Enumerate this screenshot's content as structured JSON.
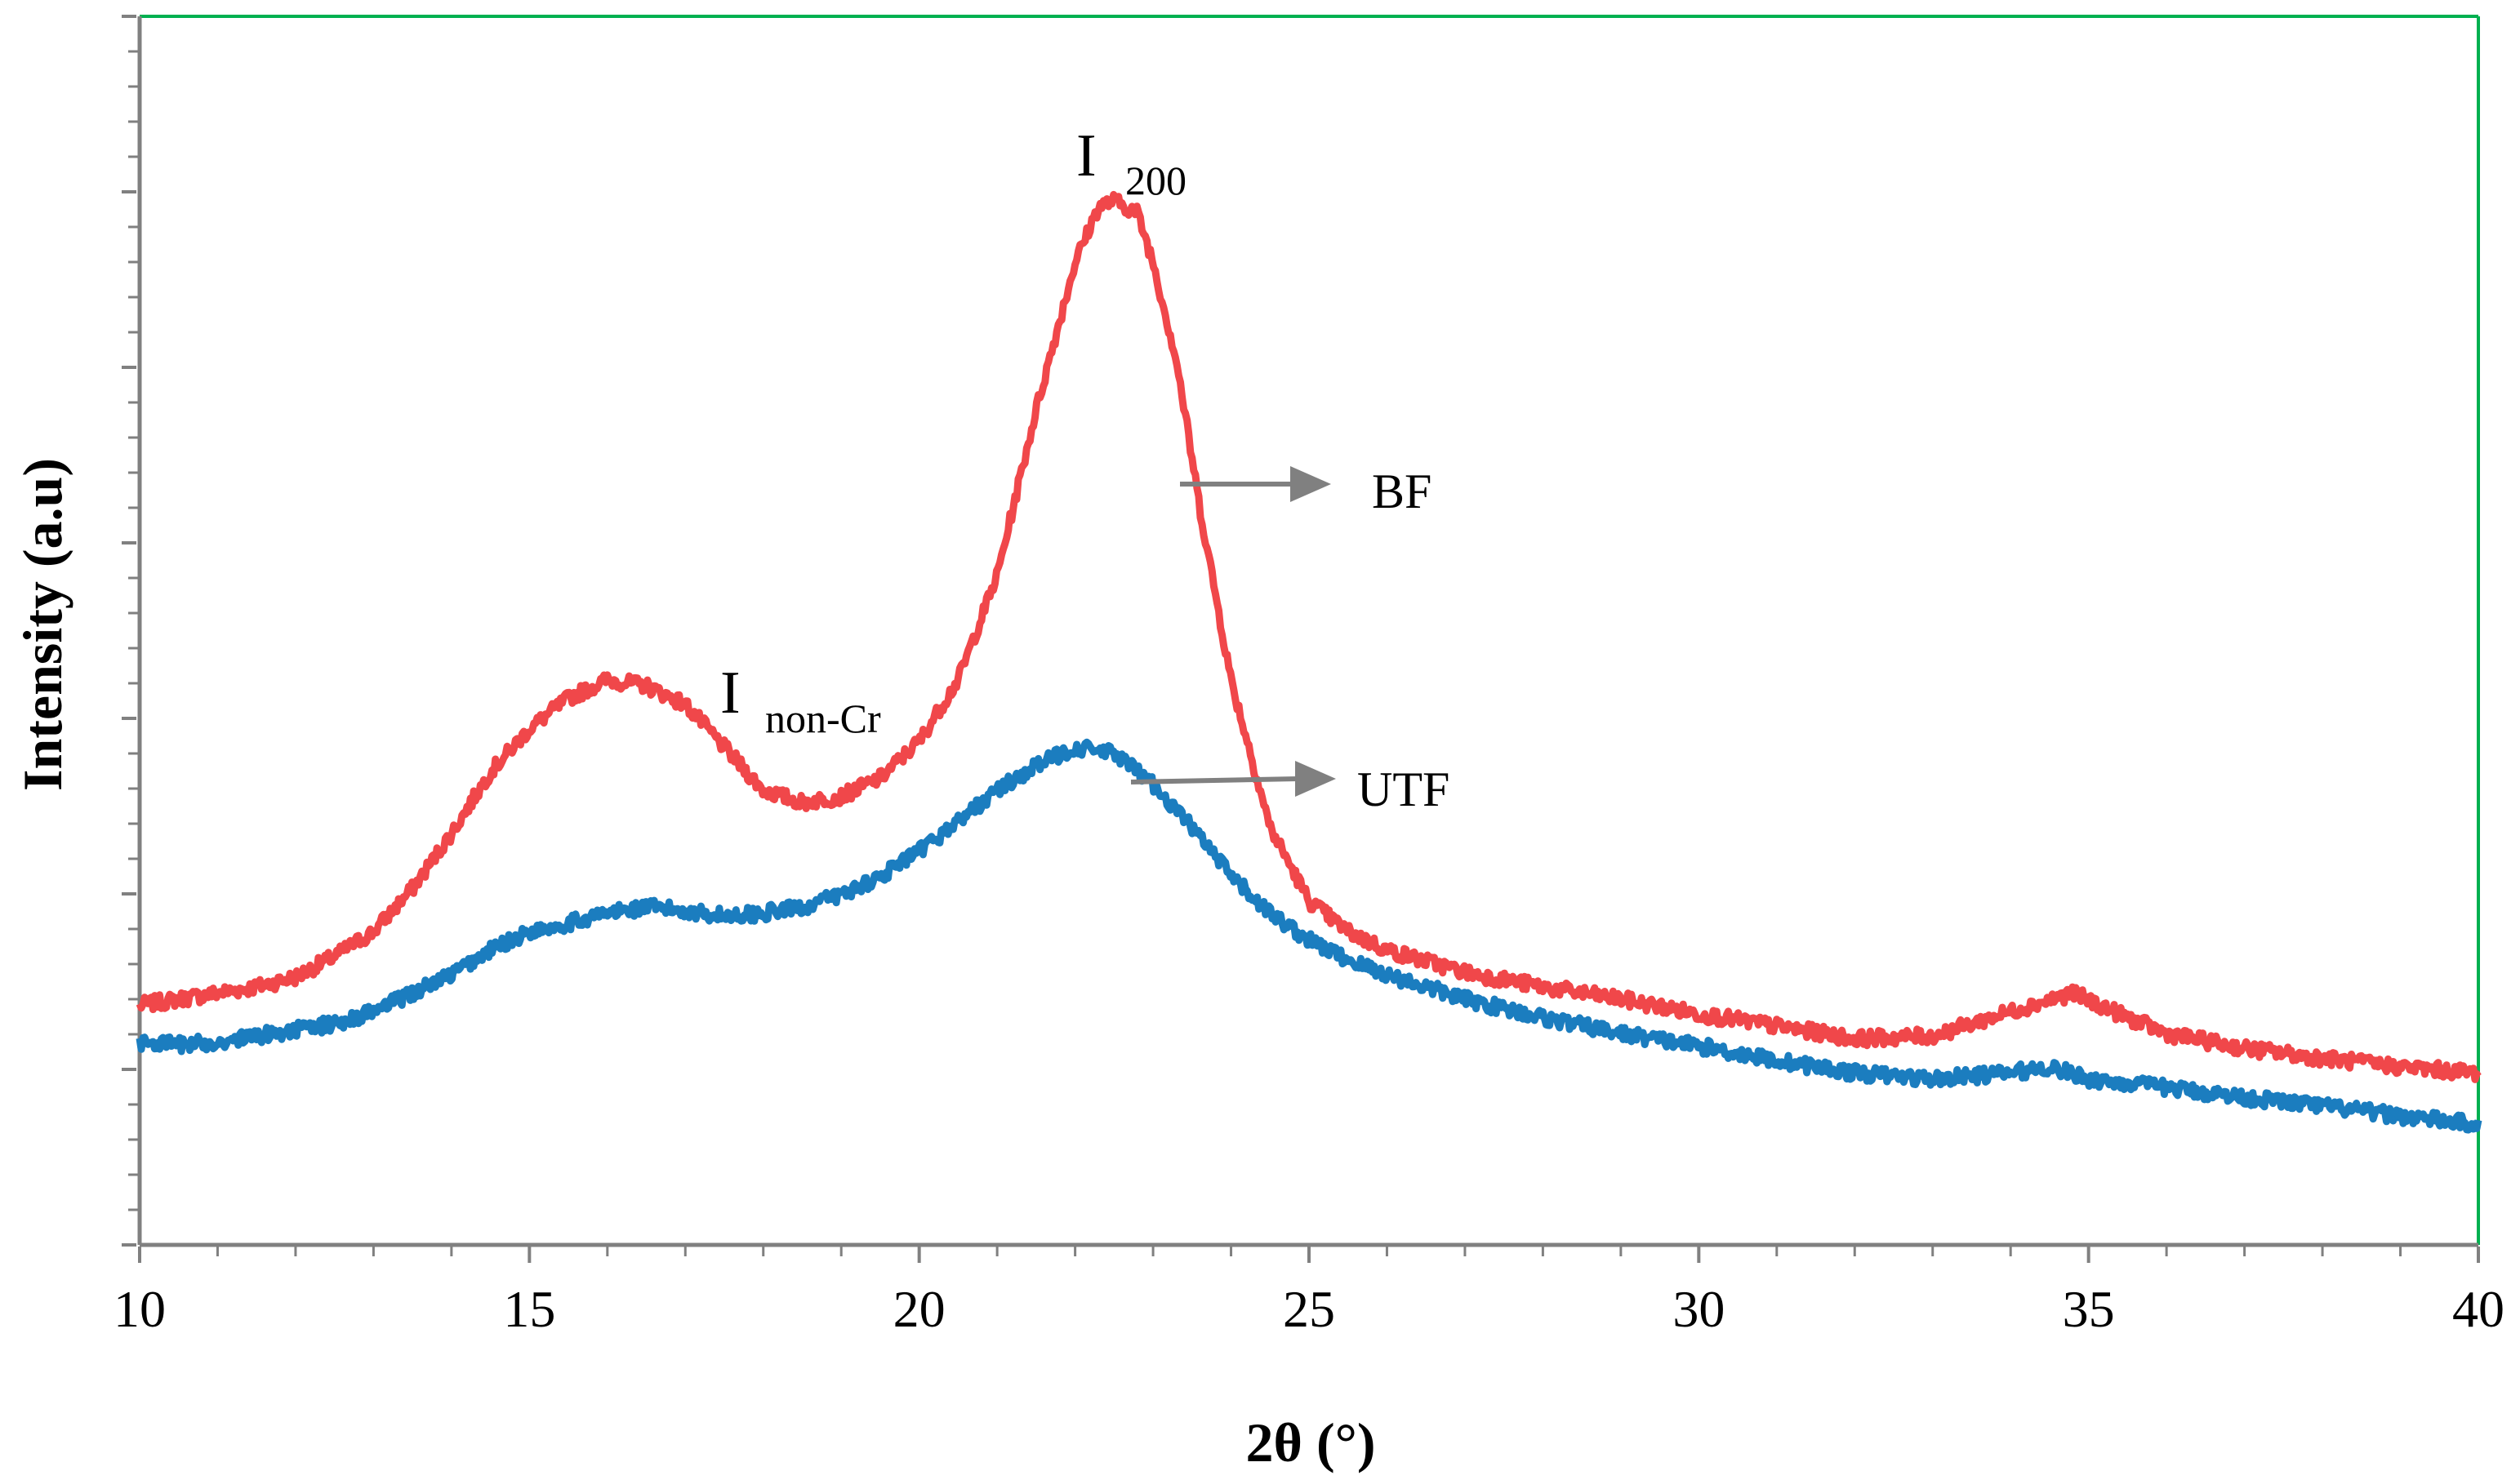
{
  "chart_data": {
    "type": "line",
    "title": "",
    "xlabel": "2θ (°)",
    "ylabel": "Intensity (a.u)",
    "xlim": [
      10,
      40
    ],
    "ylim": [
      0,
      1
    ],
    "x_ticks": [
      10,
      15,
      20,
      25,
      30,
      35,
      40
    ],
    "x_tick_labels": [
      "10",
      "15",
      "20",
      "25",
      "30",
      "35",
      "40"
    ],
    "y_tick_labels_shown": false,
    "grid": false,
    "series": [
      {
        "name": "BF",
        "color": "#f0474a",
        "points": [
          [
            10,
            0.195
          ],
          [
            10.5,
            0.2
          ],
          [
            11,
            0.205
          ],
          [
            11.5,
            0.21
          ],
          [
            12,
            0.218
          ],
          [
            12.5,
            0.235
          ],
          [
            13,
            0.255
          ],
          [
            13.5,
            0.29
          ],
          [
            14,
            0.335
          ],
          [
            14.5,
            0.385
          ],
          [
            15,
            0.42
          ],
          [
            15.5,
            0.445
          ],
          [
            16,
            0.46
          ],
          [
            16.5,
            0.455
          ],
          [
            17,
            0.44
          ],
          [
            17.5,
            0.405
          ],
          [
            18,
            0.37
          ],
          [
            18.5,
            0.36
          ],
          [
            19,
            0.365
          ],
          [
            19.5,
            0.38
          ],
          [
            20,
            0.41
          ],
          [
            20.5,
            0.46
          ],
          [
            21,
            0.545
          ],
          [
            21.5,
            0.68
          ],
          [
            22,
            0.8
          ],
          [
            22.3,
            0.845
          ],
          [
            22.5,
            0.85
          ],
          [
            22.8,
            0.84
          ],
          [
            23,
            0.8
          ],
          [
            23.3,
            0.72
          ],
          [
            23.6,
            0.6
          ],
          [
            24,
            0.46
          ],
          [
            24.5,
            0.34
          ],
          [
            25,
            0.28
          ],
          [
            25.5,
            0.255
          ],
          [
            26,
            0.24
          ],
          [
            27,
            0.222
          ],
          [
            28,
            0.21
          ],
          [
            29,
            0.2
          ],
          [
            30,
            0.188
          ],
          [
            31,
            0.178
          ],
          [
            32,
            0.168
          ],
          [
            33,
            0.17
          ],
          [
            34,
            0.19
          ],
          [
            34.8,
            0.205
          ],
          [
            35.5,
            0.185
          ],
          [
            36,
            0.172
          ],
          [
            37,
            0.16
          ],
          [
            38,
            0.152
          ],
          [
            39,
            0.145
          ],
          [
            40,
            0.14
          ]
        ]
      },
      {
        "name": "UTF",
        "color": "#1b7dbf",
        "points": [
          [
            10,
            0.165
          ],
          [
            10.5,
            0.163
          ],
          [
            11,
            0.165
          ],
          [
            11.5,
            0.17
          ],
          [
            12,
            0.175
          ],
          [
            12.5,
            0.18
          ],
          [
            13,
            0.19
          ],
          [
            13.5,
            0.205
          ],
          [
            14,
            0.22
          ],
          [
            14.5,
            0.24
          ],
          [
            15,
            0.255
          ],
          [
            15.5,
            0.262
          ],
          [
            16,
            0.27
          ],
          [
            16.5,
            0.275
          ],
          [
            17,
            0.272
          ],
          [
            17.5,
            0.268
          ],
          [
            18,
            0.27
          ],
          [
            18.5,
            0.275
          ],
          [
            19,
            0.285
          ],
          [
            19.5,
            0.3
          ],
          [
            20,
            0.32
          ],
          [
            20.5,
            0.345
          ],
          [
            21,
            0.37
          ],
          [
            21.5,
            0.39
          ],
          [
            22,
            0.405
          ],
          [
            22.5,
            0.4
          ],
          [
            23,
            0.375
          ],
          [
            23.5,
            0.34
          ],
          [
            24,
            0.3
          ],
          [
            24.5,
            0.27
          ],
          [
            25,
            0.248
          ],
          [
            25.5,
            0.232
          ],
          [
            26,
            0.22
          ],
          [
            27,
            0.2
          ],
          [
            28,
            0.185
          ],
          [
            29,
            0.172
          ],
          [
            30,
            0.162
          ],
          [
            31,
            0.15
          ],
          [
            32,
            0.14
          ],
          [
            33,
            0.135
          ],
          [
            34,
            0.14
          ],
          [
            34.5,
            0.145
          ],
          [
            35,
            0.135
          ],
          [
            36,
            0.128
          ],
          [
            37,
            0.12
          ],
          [
            38,
            0.113
          ],
          [
            39,
            0.105
          ],
          [
            40,
            0.098
          ]
        ]
      }
    ],
    "annotations": {
      "peak_main_base": "I",
      "peak_main_sub": "200",
      "peak_minor_base": "I",
      "peak_minor_sub": "non-Cr",
      "label_bf": "BF",
      "label_utf": "UTF"
    },
    "colors": {
      "axis": "#808080",
      "frame_right_top": "#00b050",
      "arrow": "#808080"
    }
  }
}
